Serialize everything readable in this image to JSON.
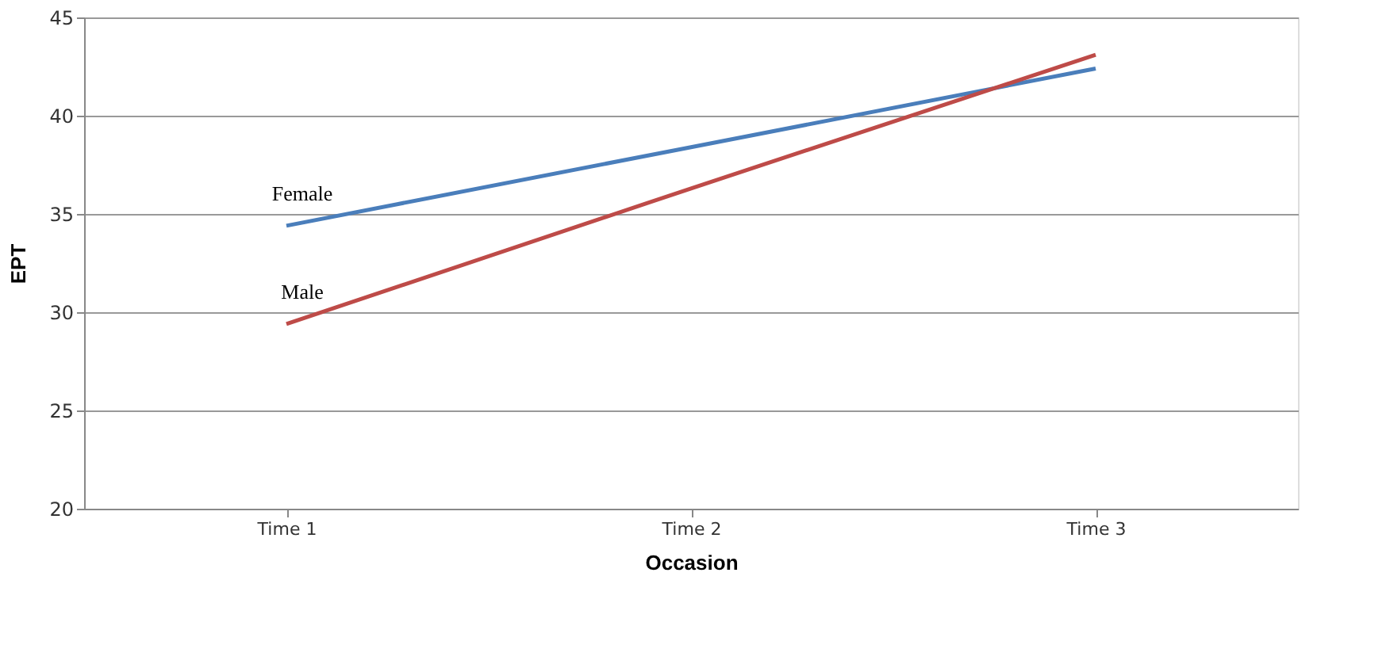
{
  "chart_data": {
    "type": "line",
    "xlabel": "Occasion",
    "ylabel": "EPT",
    "categories": [
      "Time 1",
      "Time 2",
      "Time 3"
    ],
    "series": [
      {
        "name": "Female",
        "color": "#4a7ebb",
        "values": [
          34.4,
          38.4,
          42.4
        ]
      },
      {
        "name": "Male",
        "color": "#be4b48",
        "values": [
          29.4,
          36.3,
          43.1
        ]
      }
    ],
    "ylim": [
      20,
      45
    ],
    "yticks": [
      20,
      25,
      30,
      35,
      40,
      45
    ],
    "grid": "y",
    "legend": false,
    "marker": "none",
    "line_style": "solid"
  }
}
